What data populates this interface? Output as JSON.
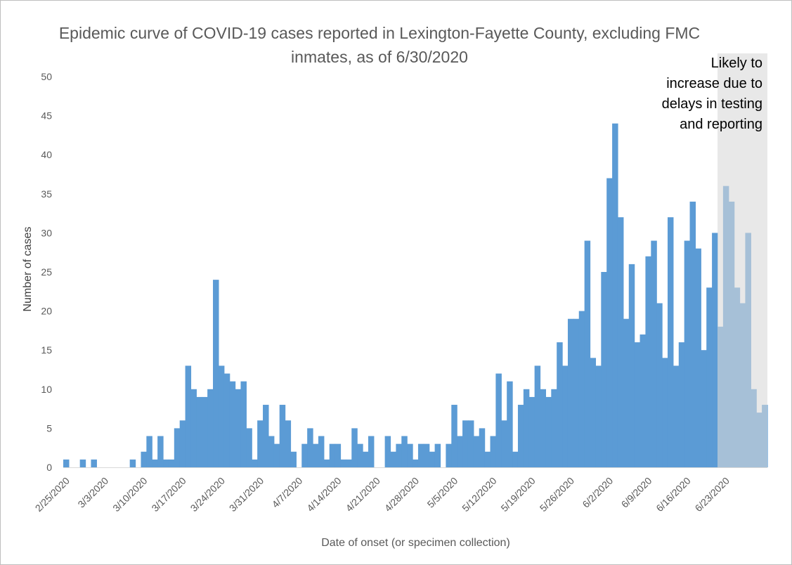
{
  "chart_data": {
    "type": "bar",
    "title": "Epidemic curve of COVID-19 cases reported in Lexington-Fayette County, excluding FMC inmates, as of 6/30/2020",
    "xlabel": "Date of onset (or specimen collection)",
    "ylabel": "Number of cases",
    "ylim": [
      0,
      50
    ],
    "y_ticks": [
      0,
      5,
      10,
      15,
      20,
      25,
      30,
      35,
      40,
      45,
      50
    ],
    "x_start": "2020-02-25",
    "x_tick_labels": [
      "2/25/2020",
      "3/3/2020",
      "3/10/2020",
      "3/17/2020",
      "3/24/2020",
      "3/31/2020",
      "4/7/2020",
      "4/14/2020",
      "4/21/2020",
      "4/28/2020",
      "5/5/2020",
      "5/12/2020",
      "5/19/2020",
      "5/26/2020",
      "6/2/2020",
      "6/9/2020",
      "6/16/2020",
      "6/23/2020"
    ],
    "grid": false,
    "bar_color": "#5b9bd5",
    "values": [
      1,
      0,
      0,
      1,
      0,
      1,
      0,
      0,
      0,
      0,
      0,
      0,
      1,
      0,
      2,
      4,
      1,
      4,
      1,
      1,
      5,
      6,
      13,
      10,
      9,
      9,
      10,
      24,
      13,
      12,
      11,
      10,
      11,
      5,
      1,
      6,
      8,
      4,
      3,
      8,
      6,
      2,
      0,
      3,
      5,
      3,
      4,
      1,
      3,
      3,
      1,
      1,
      5,
      3,
      2,
      4,
      0,
      0,
      4,
      2,
      3,
      4,
      3,
      1,
      3,
      3,
      2,
      3,
      0,
      3,
      8,
      4,
      6,
      6,
      4,
      5,
      2,
      4,
      12,
      6,
      11,
      2,
      8,
      10,
      9,
      13,
      10,
      9,
      10,
      16,
      13,
      19,
      19,
      20,
      29,
      14,
      13,
      25,
      37,
      44,
      32,
      19,
      26,
      16,
      17,
      27,
      29,
      21,
      14,
      32,
      13,
      16,
      29,
      34,
      28,
      15,
      23,
      30,
      18,
      36,
      34,
      23,
      21,
      30,
      10,
      7,
      8
    ],
    "shaded_region": {
      "start": "2020-06-22",
      "end": "2020-06-30",
      "color": "#d9d9d9",
      "label": "Likely to increase due to delays in testing and reporting"
    }
  }
}
